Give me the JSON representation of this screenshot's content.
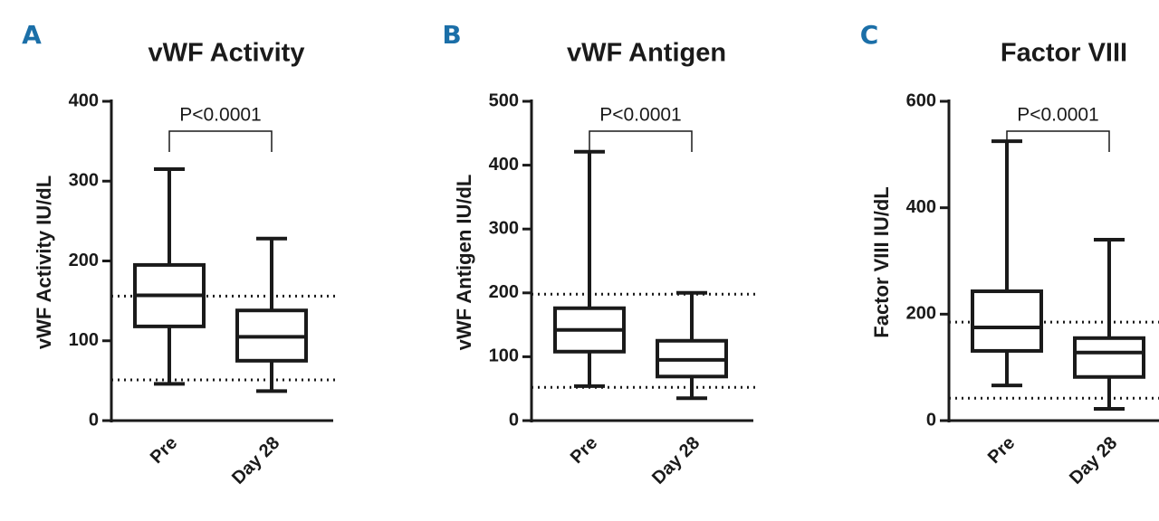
{
  "chart_data": [
    {
      "type": "box",
      "panel": "A",
      "title": "vWF Activity",
      "ylabel": "vWF Activity IU/dL",
      "categories": [
        "Pre",
        "Day 28"
      ],
      "boxes": [
        {
          "min": 46,
          "q1": 118,
          "median": 157,
          "q3": 195,
          "max": 315
        },
        {
          "min": 37,
          "q1": 75,
          "median": 105,
          "q3": 138,
          "max": 228
        }
      ],
      "hlines": [
        156,
        51
      ],
      "annotation": "P<0.0001",
      "color": "#1a1a1a",
      "ylim": [
        0,
        400
      ],
      "yticks": [
        0,
        100,
        200,
        300,
        400
      ]
    },
    {
      "type": "box",
      "panel": "B",
      "title": "vWF Antigen",
      "ylabel": "vWF Antigen IU/dL",
      "categories": [
        "Pre",
        "Day 28"
      ],
      "boxes": [
        {
          "min": 54,
          "q1": 108,
          "median": 142,
          "q3": 176,
          "max": 421
        },
        {
          "min": 35,
          "q1": 69,
          "median": 95,
          "q3": 125,
          "max": 200
        }
      ],
      "hlines": [
        198,
        52
      ],
      "annotation": "P<0.0001",
      "color": "#1a1a1a",
      "ylim": [
        0,
        500
      ],
      "yticks": [
        0,
        100,
        200,
        300,
        400,
        500
      ]
    },
    {
      "type": "box",
      "panel": "C",
      "title": "Factor  VIII",
      "ylabel": "Factor VIII IU/dL",
      "categories": [
        "Pre",
        "Day 28"
      ],
      "boxes": [
        {
          "min": 66,
          "q1": 131,
          "median": 175,
          "q3": 243,
          "max": 525
        },
        {
          "min": 22,
          "q1": 82,
          "median": 128,
          "q3": 155,
          "max": 340
        }
      ],
      "hlines": [
        185,
        42
      ],
      "annotation": "P<0.0001",
      "color": "#1a1a1a",
      "ylim": [
        0,
        600
      ],
      "yticks": [
        0,
        200,
        400,
        600
      ]
    }
  ]
}
